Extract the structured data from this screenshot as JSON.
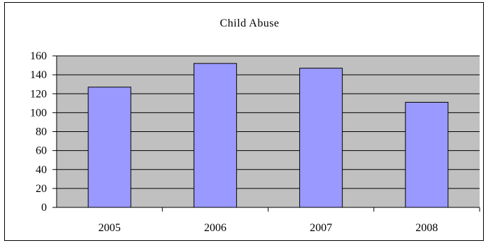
{
  "chart_data": {
    "type": "bar",
    "title": "Child Abuse",
    "categories": [
      "2005",
      "2006",
      "2007",
      "2008"
    ],
    "series": [
      {
        "values": [
          127,
          152,
          147,
          111
        ]
      }
    ],
    "ylim": [
      0,
      160
    ],
    "yticks": [
      "0",
      "20",
      "40",
      "60",
      "80",
      "100",
      "120",
      "140",
      "160"
    ],
    "grid": true,
    "legend": "none",
    "colors": {
      "bar_fill": "#9999ff",
      "bar_stroke": "#000000",
      "plot_background": "#c0c0c0",
      "gridline": "#000000"
    }
  }
}
